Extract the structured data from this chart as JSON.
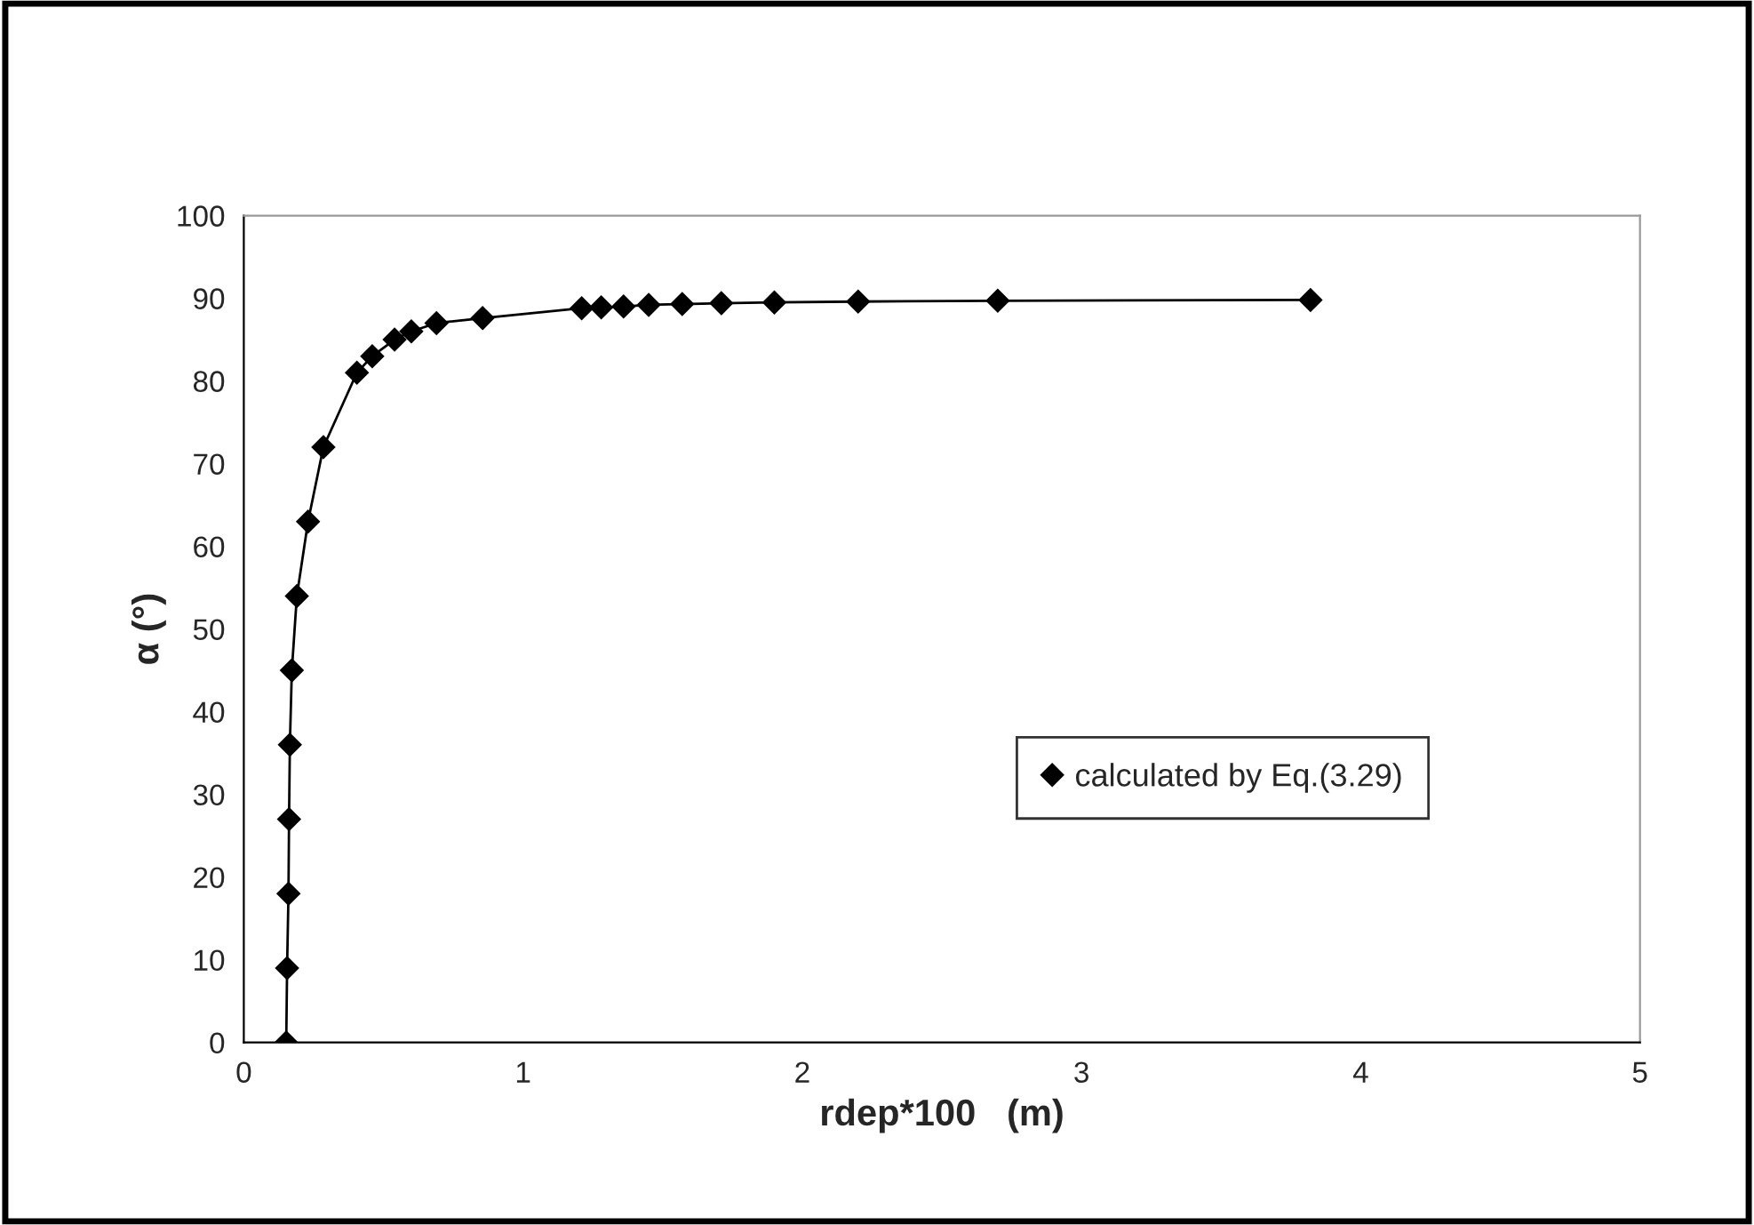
{
  "chart_data": {
    "type": "line",
    "xlabel": "rdep*100   (m)",
    "ylabel": "α (°)",
    "xlim": [
      0,
      5
    ],
    "xticks": [
      0,
      1,
      2,
      3,
      4,
      5
    ],
    "ylim": [
      0,
      100
    ],
    "yticks": [
      0,
      10,
      20,
      30,
      40,
      50,
      60,
      70,
      80,
      90,
      100
    ],
    "grid": false,
    "legend": "right",
    "marker": "diamond",
    "line_style": "solid",
    "series": [
      {
        "name": "calculated by Eq.(3.29)",
        "color": "#000000",
        "x": [
          0.152,
          0.155,
          0.16,
          0.162,
          0.165,
          0.172,
          0.19,
          0.23,
          0.285,
          0.405,
          0.46,
          0.54,
          0.6,
          0.69,
          0.855,
          1.21,
          1.28,
          1.36,
          1.45,
          1.57,
          1.71,
          1.9,
          2.2,
          2.7,
          3.82
        ],
        "values": [
          0,
          9,
          18,
          27,
          36,
          45,
          54,
          63,
          72,
          81,
          83,
          85,
          86,
          87,
          87.6,
          88.8,
          88.9,
          89,
          89.2,
          89.3,
          89.4,
          89.5,
          89.6,
          89.7,
          89.8
        ]
      }
    ]
  }
}
